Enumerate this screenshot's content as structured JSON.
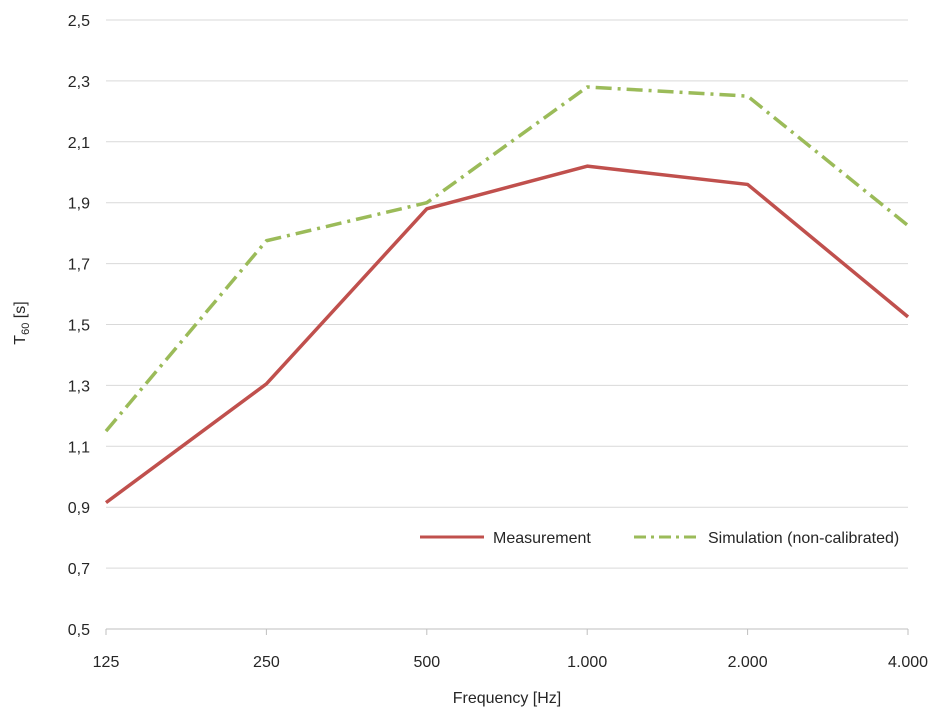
{
  "chart_data": {
    "type": "line",
    "categories": [
      "125",
      "250",
      "500",
      "1.000",
      "2.000",
      "4.000"
    ],
    "ylabel_main": "T",
    "ylabel_sub": "60",
    "ylabel_unit": " [s]",
    "xlabel": "Frequency  [Hz]",
    "ylim": [
      0.5,
      2.5
    ],
    "yticks": [
      "0,5",
      "0,7",
      "0,9",
      "1,1",
      "1,3",
      "1,5",
      "1,7",
      "1,9",
      "2,1",
      "2,3",
      "2,5"
    ],
    "grid": true,
    "legend_position": "bottom-right inside plot",
    "series": [
      {
        "name": "Measurement",
        "color": "#c0504d",
        "dash": "solid",
        "values": [
          0.915,
          1.305,
          1.88,
          2.02,
          1.96,
          1.525
        ]
      },
      {
        "name": "Simulation (non-calibrated)",
        "color": "#9bbb59",
        "dash": "dash-dot",
        "values": [
          1.15,
          1.775,
          1.9,
          2.28,
          2.25,
          1.825
        ]
      }
    ]
  }
}
